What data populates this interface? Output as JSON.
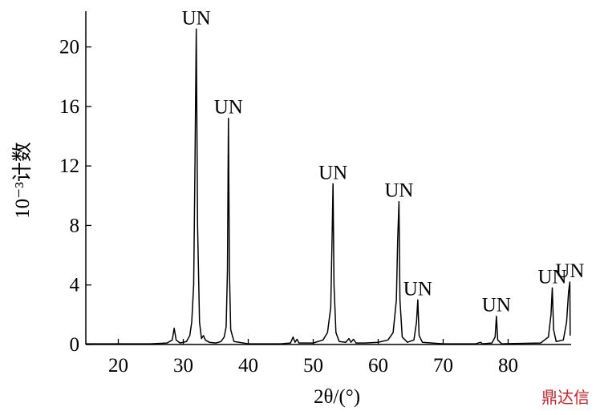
{
  "chart_data": {
    "type": "line",
    "ylabel": "10⁻³计数",
    "xlabel": "2θ/(°)",
    "watermark": "鼎达信",
    "xlim": [
      15,
      89.7
    ],
    "ylim": [
      0,
      22.4
    ],
    "xticks": [
      20,
      30,
      40,
      50,
      60,
      70,
      80
    ],
    "yticks": [
      0,
      4,
      8,
      12,
      16,
      20
    ],
    "x": [
      15,
      20,
      25,
      27.5,
      28.3,
      28.6,
      28.9,
      29.5,
      30.5,
      31.0,
      31.3,
      31.6,
      31.8,
      32.0,
      32.2,
      32.5,
      32.8,
      33.1,
      33.4,
      34,
      35,
      35.8,
      36.3,
      36.6,
      36.8,
      36.95,
      37.1,
      37.3,
      37.8,
      40,
      45,
      46.5,
      46.9,
      47.2,
      47.5,
      47.8,
      50,
      51.5,
      52.2,
      52.7,
      52.9,
      53.05,
      53.2,
      53.5,
      54,
      55,
      55.5,
      55.8,
      56.2,
      56.6,
      58,
      60,
      61.5,
      62.3,
      62.8,
      63.0,
      63.2,
      63.35,
      63.7,
      64.5,
      65.5,
      65.9,
      66.1,
      66.3,
      66.8,
      70,
      75,
      75.8,
      76,
      77.5,
      78.0,
      78.2,
      78.4,
      79,
      85,
      86.2,
      86.6,
      86.8,
      87.0,
      87.4,
      88.5,
      89.0,
      89.3,
      89.5,
      89.55
    ],
    "series": [
      {
        "color": "#000000",
        "values": [
          0.05,
          0.05,
          0.05,
          0.1,
          0.3,
          1.1,
          0.3,
          0.1,
          0.2,
          0.6,
          1.5,
          4.0,
          12,
          21.2,
          8,
          1.5,
          0.4,
          0.6,
          0.3,
          0.15,
          0.1,
          0.2,
          0.5,
          1.2,
          5,
          15.2,
          5,
          1.0,
          0.2,
          0.05,
          0.05,
          0.1,
          0.5,
          0.15,
          0.35,
          0.1,
          0.1,
          0.3,
          0.8,
          2.5,
          7,
          10.8,
          4,
          0.8,
          0.2,
          0.15,
          0.4,
          0.15,
          0.35,
          0.1,
          0.1,
          0.15,
          0.3,
          0.8,
          3,
          7,
          9.6,
          3,
          0.5,
          0.15,
          0.3,
          1.5,
          3.0,
          0.6,
          0.15,
          0.05,
          0.05,
          0.15,
          0.05,
          0.1,
          0.5,
          1.9,
          0.3,
          0.05,
          0.1,
          0.5,
          2,
          3.8,
          1.0,
          0.2,
          0.3,
          1.5,
          3.5,
          4.2,
          0.6
        ]
      }
    ],
    "annotations": [
      {
        "text": "UN",
        "x": 32.0,
        "y": 21.2
      },
      {
        "text": "UN",
        "x": 36.95,
        "y": 15.2
      },
      {
        "text": "UN",
        "x": 53.05,
        "y": 10.8
      },
      {
        "text": "UN",
        "x": 63.2,
        "y": 9.6
      },
      {
        "text": "UN",
        "x": 66.1,
        "y": 3.0
      },
      {
        "text": "UN",
        "x": 78.2,
        "y": 1.9
      },
      {
        "text": "UN",
        "x": 86.8,
        "y": 3.8
      },
      {
        "text": "UN",
        "x": 89.5,
        "y": 4.2
      }
    ]
  }
}
